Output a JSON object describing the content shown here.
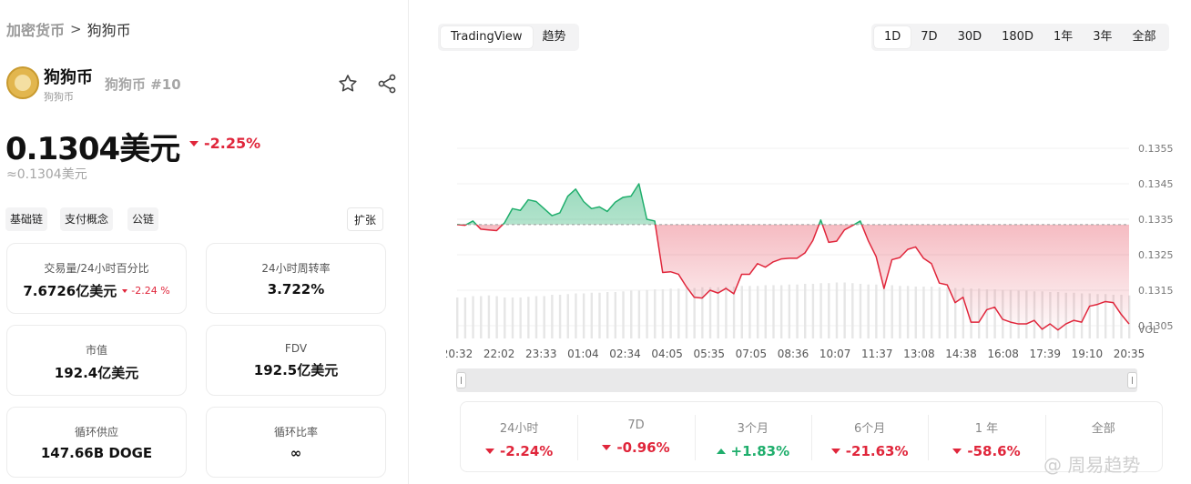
{
  "breadcrumb": {
    "root": "加密货币",
    "separator": ">",
    "current": "狗狗币"
  },
  "coin": {
    "name": "狗狗币",
    "sub_name": "狗狗币",
    "rank": "狗狗币 #10"
  },
  "price": {
    "value": "0.1304美元",
    "change": "-2.25%",
    "approx": "≈0.1304美元"
  },
  "tags": [
    "基础链",
    "支付概念",
    "公链"
  ],
  "expand_label": "扩张",
  "stats": {
    "volume": {
      "label": "交易量/24小时百分比",
      "value": "7.6726亿美元",
      "change": "-2.24 %"
    },
    "turnover": {
      "label": "24小时周转率",
      "value": "3.722%"
    },
    "mcap": {
      "label": "市值",
      "value": "192.4亿美元"
    },
    "fdv": {
      "label": "FDV",
      "value": "192.5亿美元"
    },
    "supply": {
      "label": "循环供应",
      "value": "147.66B DOGE"
    },
    "ratio": {
      "label": "循环比率",
      "value": "∞"
    }
  },
  "chart_tabs": [
    "TradingView",
    "趋势"
  ],
  "range_tabs": [
    "1D",
    "7D",
    "30D",
    "180D",
    "1年",
    "3年",
    "全部"
  ],
  "active_range": "1D",
  "performance": [
    {
      "label": "24小时",
      "value": "-2.24%",
      "dir": "down"
    },
    {
      "label": "7D",
      "value": "-0.96%",
      "dir": "down"
    },
    {
      "label": "3个月",
      "value": "+1.83%",
      "dir": "up"
    },
    {
      "label": "6个月",
      "value": "-21.63%",
      "dir": "down"
    },
    {
      "label": "1 年",
      "value": "-58.6%",
      "dir": "down"
    },
    {
      "label": "全部",
      "value": "",
      "dir": ""
    }
  ],
  "watermark": "@ 周易趋势",
  "colors": {
    "up": "#1fae6c",
    "down": "#e0263b",
    "accent": "#2966d6"
  },
  "chart_data": {
    "type": "area",
    "baseline": 1333.5,
    "y_ticks": [
      "0.1355",
      "0.1345",
      "0.1335",
      "0.1325",
      "0.1315",
      "0.1305",
      "VOL"
    ],
    "x_labels": [
      "20:32",
      "22:02",
      "23:33",
      "01:04",
      "02:34",
      "04:05",
      "05:35",
      "07:05",
      "08:36",
      "10:07",
      "11:37",
      "13:08",
      "14:38",
      "16:08",
      "17:39",
      "19:10",
      "20:35"
    ],
    "ylim": [
      1302,
      1360
    ],
    "values": [
      1333.5,
      1333.3,
      1334.5,
      1332.2,
      1332,
      1331.8,
      1334,
      1338,
      1337.5,
      1340.5,
      1340,
      1338,
      1336,
      1336.8,
      1341.5,
      1343.5,
      1340,
      1338,
      1338.5,
      1337.2,
      1339.8,
      1341.2,
      1341.5,
      1345,
      1335,
      1334.5,
      1320,
      1320.2,
      1319.5,
      1316,
      1313,
      1312.8,
      1315,
      1314.2,
      1315.5,
      1314,
      1319.5,
      1319.5,
      1322.5,
      1321.5,
      1323,
      1323.8,
      1324,
      1324,
      1325.5,
      1329,
      1334.8,
      1328.5,
      1328.8,
      1332,
      1333.2,
      1334.5,
      1329,
      1324.5,
      1315.5,
      1323.6,
      1324.2,
      1326.5,
      1327.2,
      1324,
      1322.5,
      1317,
      1316.5,
      1311.5,
      1313,
      1306,
      1306,
      1309.5,
      1310.2,
      1306.8,
      1306,
      1305.5,
      1305.5,
      1306.5,
      1304,
      1305.5,
      1303.8,
      1305.5,
      1306.5,
      1306,
      1310.5,
      1311,
      1311.8,
      1311.5,
      1308.2,
      1305.5
    ],
    "volume": [
      0.6,
      0.6,
      0.62,
      0.62,
      0.63,
      0.62,
      0.6,
      0.6,
      0.6,
      0.61,
      0.62,
      0.62,
      0.64,
      0.64,
      0.65,
      0.66,
      0.66,
      0.67,
      0.67,
      0.68,
      0.68,
      0.69,
      0.7,
      0.7,
      0.71,
      0.72,
      0.72,
      0.73,
      0.73,
      0.74,
      0.74,
      0.75,
      0.75,
      0.75,
      0.76,
      0.76,
      0.77,
      0.77,
      0.77,
      0.78,
      0.78,
      0.78,
      0.79,
      0.79,
      0.8,
      0.8,
      0.81,
      0.81,
      0.82,
      0.82,
      0.81,
      0.8,
      0.79,
      0.79,
      0.78,
      0.78,
      0.77,
      0.77,
      0.76,
      0.76,
      0.76,
      0.75,
      0.75,
      0.74,
      0.74,
      0.73,
      0.73,
      0.72,
      0.72,
      0.71,
      0.71,
      0.7,
      0.7,
      0.69,
      0.69,
      0.68,
      0.68,
      0.67,
      0.67,
      0.66,
      0.66,
      0.65,
      0.65,
      0.64,
      0.64,
      0.63
    ]
  }
}
